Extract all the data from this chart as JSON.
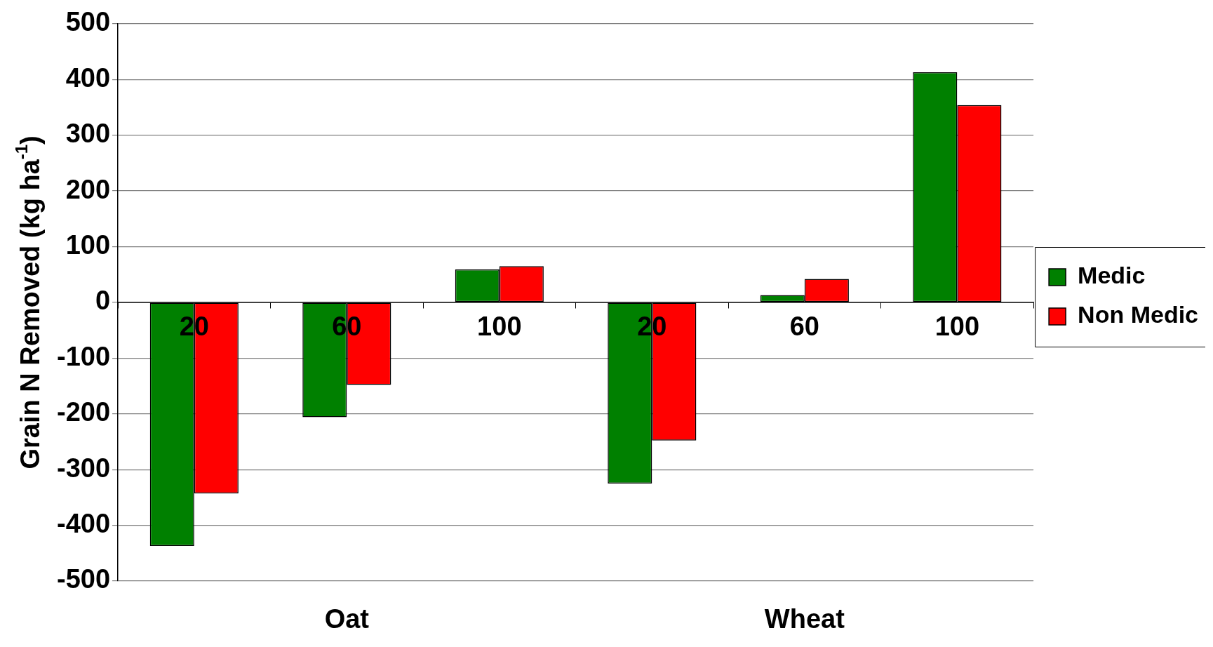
{
  "chart_data": {
    "type": "bar",
    "ylabel": "Grain N Removed (kg ha$^{-1}$)",
    "categories": [
      "20",
      "60",
      "100",
      "20",
      "60",
      "100"
    ],
    "series": [
      {
        "name": "Medic",
        "color": "#008000",
        "values": [
          -437,
          -206,
          59,
          -325,
          13,
          413
        ]
      },
      {
        "name": "Non Medic",
        "color": "#ff0000",
        "values": [
          -343,
          -148,
          65,
          -248,
          42,
          354
        ]
      }
    ],
    "ylim": [
      -500,
      500
    ],
    "yticks": [
      -500,
      -400,
      -300,
      -200,
      -100,
      0,
      100,
      200,
      300,
      400,
      500
    ],
    "grid": "y",
    "legend": "right",
    "annotations": [
      "Oat",
      "Wheat"
    ]
  }
}
